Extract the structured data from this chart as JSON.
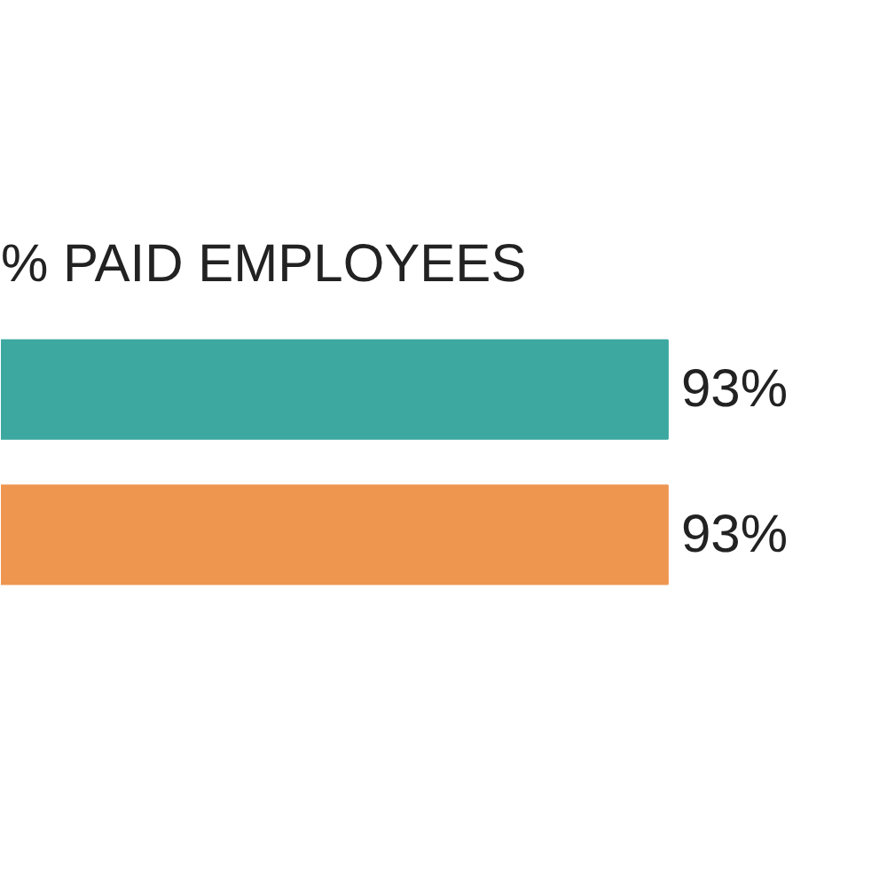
{
  "chart_data": {
    "type": "bar",
    "orientation": "horizontal",
    "title": "% PAID EMPLOYEES",
    "categories": [
      null,
      null
    ],
    "values": [
      93,
      93
    ],
    "colors": [
      "#3ca8a0",
      "#ee9650"
    ],
    "value_labels": [
      "93%",
      "93%"
    ]
  }
}
